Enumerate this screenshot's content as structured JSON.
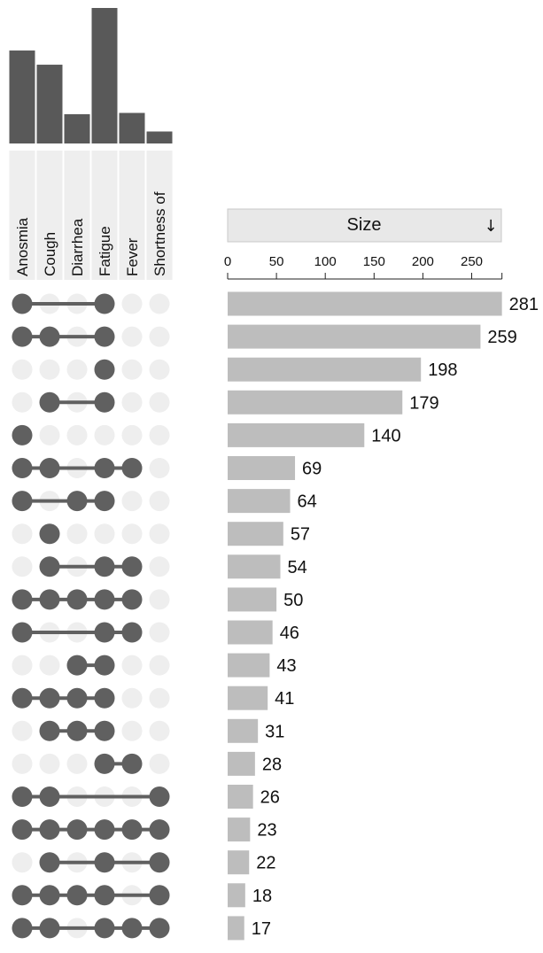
{
  "chart_data": {
    "type": "upset",
    "sets": [
      "Anosmia",
      "Cough",
      "Diarrhea",
      "Fatigue",
      "Fever",
      "Shortness of"
    ],
    "set_sizes": [
      295,
      250,
      93,
      430,
      97,
      38
    ],
    "intersections": [
      {
        "members": [
          0,
          3
        ],
        "size": 281
      },
      {
        "members": [
          0,
          1,
          3
        ],
        "size": 259
      },
      {
        "members": [
          3
        ],
        "size": 198
      },
      {
        "members": [
          1,
          3
        ],
        "size": 179
      },
      {
        "members": [
          0
        ],
        "size": 140
      },
      {
        "members": [
          0,
          1,
          3,
          4
        ],
        "size": 69
      },
      {
        "members": [
          0,
          2,
          3
        ],
        "size": 64
      },
      {
        "members": [
          1
        ],
        "size": 57
      },
      {
        "members": [
          1,
          3,
          4
        ],
        "size": 54
      },
      {
        "members": [
          0,
          1,
          2,
          3,
          4
        ],
        "size": 50
      },
      {
        "members": [
          0,
          3,
          4
        ],
        "size": 46
      },
      {
        "members": [
          2,
          3
        ],
        "size": 43
      },
      {
        "members": [
          0,
          1,
          2,
          3
        ],
        "size": 41
      },
      {
        "members": [
          1,
          2,
          3
        ],
        "size": 31
      },
      {
        "members": [
          3,
          4
        ],
        "size": 28
      },
      {
        "members": [
          0,
          1,
          5
        ],
        "size": 26
      },
      {
        "members": [
          0,
          1,
          2,
          3,
          4,
          5
        ],
        "size": 23
      },
      {
        "members": [
          1,
          3,
          5
        ],
        "size": 22
      },
      {
        "members": [
          0,
          1,
          2,
          3,
          5
        ],
        "size": 18
      },
      {
        "members": [
          0,
          1,
          3,
          4,
          5
        ],
        "size": 17
      }
    ],
    "size_axis": {
      "label": "Size",
      "sort_icon": "↓",
      "ticks": [
        0,
        50,
        100,
        150,
        200,
        250
      ],
      "range": [
        0,
        281
      ]
    },
    "colors": {
      "bar": "#bdbdbd",
      "set_bar": "#595959",
      "dot_on": "#606060",
      "dot_off": "#eeeeee",
      "header": "#e8e8e8",
      "label_bg": "#eeeeee"
    }
  }
}
